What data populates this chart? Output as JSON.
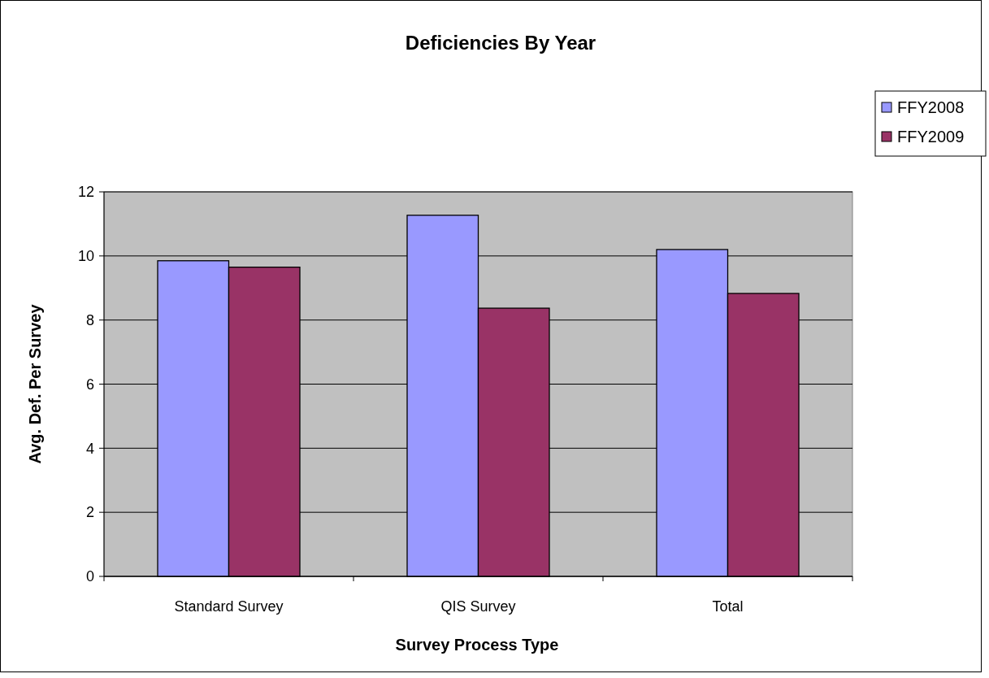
{
  "chart_data": {
    "type": "bar",
    "title": "Deficiencies By Year",
    "xlabel": "Survey Process Type",
    "ylabel": "Avg. Def. Per Survey",
    "categories": [
      "Standard Survey",
      "QIS Survey",
      "Total"
    ],
    "series": [
      {
        "name": "FFY2008",
        "color": "#9999ff",
        "values": [
          9.85,
          11.27,
          10.2
        ]
      },
      {
        "name": "FFY2009",
        "color": "#993366",
        "values": [
          9.65,
          8.37,
          8.83
        ]
      }
    ],
    "ylim": [
      0,
      12
    ],
    "yticks": [
      0,
      2,
      4,
      6,
      8,
      10,
      12
    ],
    "grid": "y",
    "legend": "top right"
  }
}
